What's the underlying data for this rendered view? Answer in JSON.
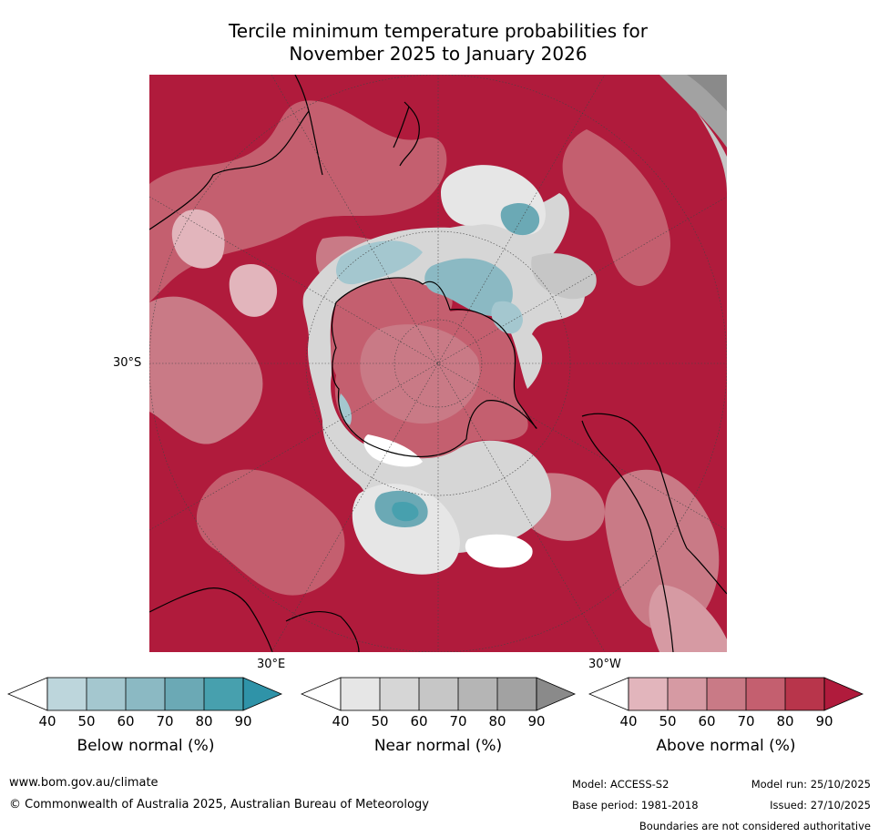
{
  "title": {
    "line1": "Tercile minimum temperature probabilities for",
    "line2": "November 2025 to January 2026"
  },
  "map": {
    "projection": "south-polar-stereographic",
    "graticule_labels": {
      "lat_30S": "30°S",
      "lon_30E": "30°E",
      "lon_30W": "30°W"
    }
  },
  "legends": [
    {
      "title": "Below normal (%)",
      "ticks": [
        "40",
        "50",
        "60",
        "70",
        "80",
        "90"
      ],
      "colors": [
        "#ffffff",
        "#bdd6dc",
        "#a4c7cf",
        "#8bb9c3",
        "#6ba9b5",
        "#47a0ae",
        "#2f93a8"
      ]
    },
    {
      "title": "Near normal (%)",
      "ticks": [
        "40",
        "50",
        "60",
        "70",
        "80",
        "90"
      ],
      "colors": [
        "#ffffff",
        "#e6e6e6",
        "#d6d6d6",
        "#c6c6c6",
        "#b5b5b5",
        "#a2a2a2",
        "#8a8a8a"
      ]
    },
    {
      "title": "Above normal (%)",
      "ticks": [
        "40",
        "50",
        "60",
        "70",
        "80",
        "90"
      ],
      "colors": [
        "#ffffff",
        "#e2b5bc",
        "#d69aa3",
        "#c97a86",
        "#c45f6f",
        "#b8354b",
        "#b01b3c"
      ]
    }
  ],
  "footer": {
    "website": "www.bom.gov.au/climate",
    "copyright": "© Commonwealth of Australia 2025, Australian Bureau of Meteorology",
    "model": "Model: ACCESS-S2",
    "model_run": "Model run: 25/10/2025",
    "base_period": "Base period: 1981-2018",
    "issued": "Issued: 27/10/2025",
    "disclaimer": "Boundaries are not considered authoritative"
  }
}
